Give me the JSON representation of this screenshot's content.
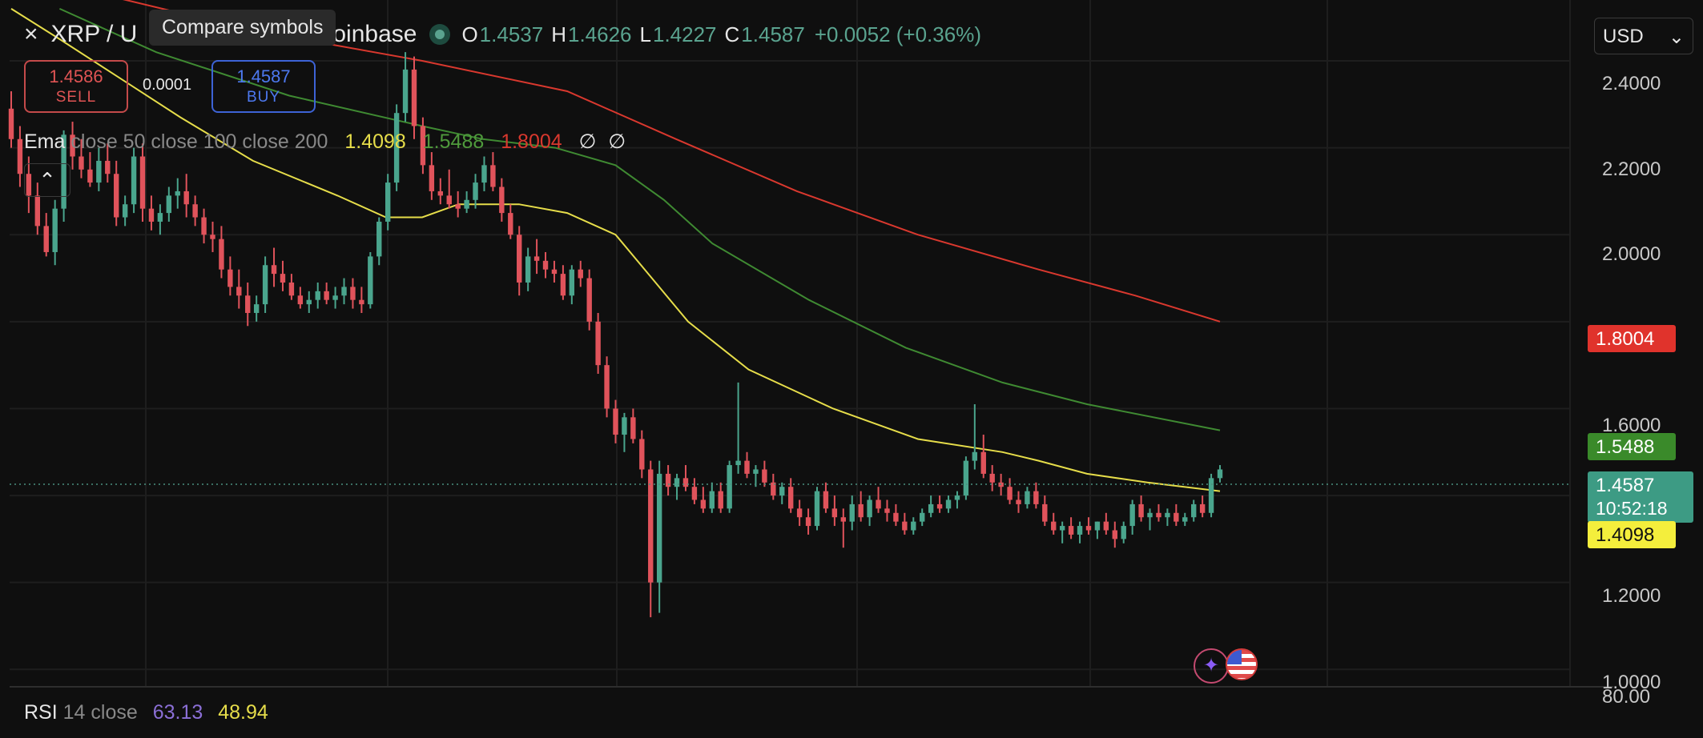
{
  "header": {
    "close_icon": "×",
    "symbol_title": "XRP / U",
    "exchange_suffix": "oinbase",
    "tooltip": "Compare symbols",
    "ohlc": [
      {
        "key": "O",
        "value": "1.4537"
      },
      {
        "key": "H",
        "value": "1.4626"
      },
      {
        "key": "L",
        "value": "1.4227"
      },
      {
        "key": "C",
        "value": "1.4587"
      }
    ],
    "change": "+0.0052 (+0.36%)",
    "currency": "USD",
    "currency_chevron": "⌄"
  },
  "trade": {
    "sell_price": "1.4586",
    "sell_label": "SELL",
    "spread": "0.0001",
    "buy_price": "1.4587",
    "buy_label": "BUY"
  },
  "ema_legend": {
    "name": "Ema",
    "params": "close 50 close 100 close 200",
    "value_50": "1.4098",
    "value_100": "1.5488",
    "value_200": "1.8004",
    "extra_1": "∅",
    "extra_2": "∅",
    "collapse_icon": "⌃"
  },
  "rsi_legend": {
    "name": "RSI",
    "params": "14 close",
    "value_rsi": "63.13",
    "value_ma": "48.94"
  },
  "price_axis": {
    "ticks": [
      "2.4000",
      "2.2000",
      "2.0000",
      "1.6000",
      "1.2000",
      "1.0000"
    ],
    "rsi_tick": "80.00"
  },
  "price_labels": {
    "ema200": "1.8004",
    "ema100": "1.5488",
    "last": "1.4587",
    "countdown": "10:52:18",
    "ema50": "1.4098"
  },
  "colors": {
    "up": "#4aa58d",
    "down": "#e0535b",
    "ema50": "#e6dd4a",
    "ema100": "#3f8a32",
    "ema200": "#d9382e",
    "grid": "#1e1e1e"
  },
  "icons": {
    "spark": "✦"
  },
  "chart_data": {
    "type": "candlestick",
    "symbol": "XRP / USD",
    "ylim": [
      0.96,
      2.54
    ],
    "candles": [
      [
        2.29,
        2.33,
        2.2,
        2.22
      ],
      [
        2.22,
        2.25,
        2.11,
        2.14
      ],
      [
        2.14,
        2.18,
        2.05,
        2.09
      ],
      [
        2.09,
        2.12,
        2.0,
        2.02
      ],
      [
        2.02,
        2.05,
        1.95,
        1.96
      ],
      [
        1.96,
        2.08,
        1.93,
        2.06
      ],
      [
        2.06,
        2.24,
        2.03,
        2.23
      ],
      [
        2.23,
        2.26,
        2.15,
        2.18
      ],
      [
        2.18,
        2.22,
        2.13,
        2.15
      ],
      [
        2.15,
        2.19,
        2.11,
        2.12
      ],
      [
        2.12,
        2.2,
        2.1,
        2.17
      ],
      [
        2.17,
        2.21,
        2.12,
        2.14
      ],
      [
        2.14,
        2.17,
        2.02,
        2.04
      ],
      [
        2.04,
        2.09,
        2.02,
        2.07
      ],
      [
        2.07,
        2.2,
        2.05,
        2.18
      ],
      [
        2.18,
        2.21,
        2.03,
        2.06
      ],
      [
        2.06,
        2.09,
        2.01,
        2.03
      ],
      [
        2.03,
        2.07,
        2.0,
        2.05
      ],
      [
        2.05,
        2.11,
        2.03,
        2.09
      ],
      [
        2.09,
        2.13,
        2.06,
        2.1
      ],
      [
        2.1,
        2.14,
        2.04,
        2.07
      ],
      [
        2.07,
        2.09,
        2.02,
        2.04
      ],
      [
        2.04,
        2.06,
        1.98,
        2.0
      ],
      [
        2.0,
        2.03,
        1.96,
        1.99
      ],
      [
        1.99,
        2.02,
        1.9,
        1.92
      ],
      [
        1.92,
        1.95,
        1.86,
        1.88
      ],
      [
        1.88,
        1.92,
        1.83,
        1.86
      ],
      [
        1.86,
        1.89,
        1.79,
        1.82
      ],
      [
        1.82,
        1.86,
        1.8,
        1.84
      ],
      [
        1.84,
        1.95,
        1.82,
        1.93
      ],
      [
        1.93,
        1.97,
        1.88,
        1.91
      ],
      [
        1.91,
        1.94,
        1.87,
        1.89
      ],
      [
        1.89,
        1.91,
        1.85,
        1.86
      ],
      [
        1.86,
        1.88,
        1.83,
        1.84
      ],
      [
        1.84,
        1.87,
        1.82,
        1.85
      ],
      [
        1.85,
        1.89,
        1.83,
        1.87
      ],
      [
        1.87,
        1.89,
        1.84,
        1.85
      ],
      [
        1.85,
        1.88,
        1.83,
        1.86
      ],
      [
        1.86,
        1.9,
        1.84,
        1.88
      ],
      [
        1.88,
        1.9,
        1.83,
        1.85
      ],
      [
        1.85,
        1.88,
        1.82,
        1.84
      ],
      [
        1.84,
        1.96,
        1.83,
        1.95
      ],
      [
        1.95,
        2.04,
        1.93,
        2.03
      ],
      [
        2.03,
        2.14,
        2.01,
        2.12
      ],
      [
        2.12,
        2.3,
        2.1,
        2.28
      ],
      [
        2.28,
        2.42,
        2.26,
        2.38
      ],
      [
        2.38,
        2.41,
        2.22,
        2.25
      ],
      [
        2.25,
        2.27,
        2.14,
        2.16
      ],
      [
        2.16,
        2.19,
        2.08,
        2.1
      ],
      [
        2.1,
        2.13,
        2.07,
        2.09
      ],
      [
        2.09,
        2.15,
        2.06,
        2.07
      ],
      [
        2.07,
        2.1,
        2.04,
        2.06
      ],
      [
        2.06,
        2.1,
        2.05,
        2.08
      ],
      [
        2.08,
        2.14,
        2.06,
        2.12
      ],
      [
        2.12,
        2.18,
        2.1,
        2.16
      ],
      [
        2.16,
        2.19,
        2.1,
        2.11
      ],
      [
        2.11,
        2.13,
        2.03,
        2.05
      ],
      [
        2.05,
        2.07,
        1.99,
        2.0
      ],
      [
        2.0,
        2.02,
        1.86,
        1.89
      ],
      [
        1.89,
        1.97,
        1.87,
        1.95
      ],
      [
        1.95,
        1.99,
        1.91,
        1.94
      ],
      [
        1.94,
        1.96,
        1.9,
        1.92
      ],
      [
        1.92,
        1.94,
        1.89,
        1.91
      ],
      [
        1.91,
        1.93,
        1.85,
        1.86
      ],
      [
        1.86,
        1.93,
        1.84,
        1.92
      ],
      [
        1.92,
        1.94,
        1.88,
        1.9
      ],
      [
        1.9,
        1.92,
        1.78,
        1.8
      ],
      [
        1.8,
        1.82,
        1.68,
        1.7
      ],
      [
        1.7,
        1.72,
        1.58,
        1.6
      ],
      [
        1.6,
        1.62,
        1.52,
        1.54
      ],
      [
        1.54,
        1.59,
        1.5,
        1.58
      ],
      [
        1.58,
        1.6,
        1.52,
        1.53
      ],
      [
        1.53,
        1.55,
        1.44,
        1.46
      ],
      [
        1.46,
        1.48,
        1.12,
        1.2
      ],
      [
        1.2,
        1.48,
        1.13,
        1.45
      ],
      [
        1.45,
        1.47,
        1.4,
        1.42
      ],
      [
        1.42,
        1.45,
        1.39,
        1.44
      ],
      [
        1.44,
        1.47,
        1.41,
        1.42
      ],
      [
        1.42,
        1.44,
        1.38,
        1.39
      ],
      [
        1.39,
        1.42,
        1.36,
        1.37
      ],
      [
        1.37,
        1.43,
        1.36,
        1.41
      ],
      [
        1.41,
        1.43,
        1.36,
        1.37
      ],
      [
        1.37,
        1.48,
        1.36,
        1.47
      ],
      [
        1.47,
        1.66,
        1.45,
        1.48
      ],
      [
        1.48,
        1.5,
        1.44,
        1.45
      ],
      [
        1.45,
        1.47,
        1.42,
        1.46
      ],
      [
        1.46,
        1.48,
        1.42,
        1.43
      ],
      [
        1.43,
        1.45,
        1.39,
        1.4
      ],
      [
        1.4,
        1.43,
        1.38,
        1.42
      ],
      [
        1.42,
        1.44,
        1.36,
        1.37
      ],
      [
        1.37,
        1.39,
        1.33,
        1.35
      ],
      [
        1.35,
        1.37,
        1.31,
        1.33
      ],
      [
        1.33,
        1.42,
        1.32,
        1.41
      ],
      [
        1.41,
        1.43,
        1.36,
        1.37
      ],
      [
        1.37,
        1.4,
        1.33,
        1.35
      ],
      [
        1.35,
        1.37,
        1.28,
        1.34
      ],
      [
        1.34,
        1.4,
        1.32,
        1.38
      ],
      [
        1.38,
        1.41,
        1.34,
        1.35
      ],
      [
        1.35,
        1.4,
        1.33,
        1.39
      ],
      [
        1.39,
        1.42,
        1.36,
        1.37
      ],
      [
        1.37,
        1.39,
        1.34,
        1.36
      ],
      [
        1.36,
        1.38,
        1.33,
        1.34
      ],
      [
        1.34,
        1.36,
        1.31,
        1.32
      ],
      [
        1.32,
        1.35,
        1.31,
        1.34
      ],
      [
        1.34,
        1.37,
        1.33,
        1.36
      ],
      [
        1.36,
        1.4,
        1.35,
        1.38
      ],
      [
        1.38,
        1.4,
        1.36,
        1.37
      ],
      [
        1.37,
        1.4,
        1.36,
        1.39
      ],
      [
        1.39,
        1.41,
        1.37,
        1.4
      ],
      [
        1.4,
        1.49,
        1.39,
        1.48
      ],
      [
        1.48,
        1.61,
        1.46,
        1.5
      ],
      [
        1.5,
        1.54,
        1.44,
        1.45
      ],
      [
        1.45,
        1.47,
        1.41,
        1.43
      ],
      [
        1.43,
        1.45,
        1.4,
        1.42
      ],
      [
        1.42,
        1.44,
        1.38,
        1.39
      ],
      [
        1.39,
        1.41,
        1.36,
        1.38
      ],
      [
        1.38,
        1.42,
        1.37,
        1.41
      ],
      [
        1.41,
        1.43,
        1.37,
        1.38
      ],
      [
        1.38,
        1.4,
        1.33,
        1.34
      ],
      [
        1.34,
        1.36,
        1.31,
        1.32
      ],
      [
        1.32,
        1.34,
        1.29,
        1.33
      ],
      [
        1.33,
        1.35,
        1.3,
        1.31
      ],
      [
        1.31,
        1.34,
        1.29,
        1.33
      ],
      [
        1.33,
        1.35,
        1.31,
        1.32
      ],
      [
        1.32,
        1.34,
        1.3,
        1.34
      ],
      [
        1.34,
        1.36,
        1.31,
        1.32
      ],
      [
        1.32,
        1.34,
        1.28,
        1.3
      ],
      [
        1.3,
        1.34,
        1.29,
        1.33
      ],
      [
        1.33,
        1.39,
        1.31,
        1.38
      ],
      [
        1.38,
        1.4,
        1.34,
        1.35
      ],
      [
        1.35,
        1.37,
        1.32,
        1.36
      ],
      [
        1.36,
        1.38,
        1.34,
        1.35
      ],
      [
        1.35,
        1.37,
        1.33,
        1.36
      ],
      [
        1.36,
        1.38,
        1.33,
        1.34
      ],
      [
        1.34,
        1.36,
        1.33,
        1.35
      ],
      [
        1.35,
        1.39,
        1.34,
        1.38
      ],
      [
        1.38,
        1.4,
        1.35,
        1.36
      ],
      [
        1.36,
        1.45,
        1.35,
        1.44
      ],
      [
        1.44,
        1.47,
        1.43,
        1.46
      ]
    ],
    "ema_series": [
      {
        "name": "close 50",
        "values": [
          [
            0,
            2.52
          ],
          [
            0.04,
            2.45
          ],
          [
            0.09,
            2.36
          ],
          [
            0.14,
            2.27
          ],
          [
            0.2,
            2.17
          ],
          [
            0.27,
            2.09
          ],
          [
            0.31,
            2.04
          ],
          [
            0.34,
            2.04
          ],
          [
            0.37,
            2.07
          ],
          [
            0.42,
            2.07
          ],
          [
            0.46,
            2.05
          ],
          [
            0.5,
            2.0
          ],
          [
            0.53,
            1.9
          ],
          [
            0.56,
            1.8
          ],
          [
            0.61,
            1.69
          ],
          [
            0.68,
            1.6
          ],
          [
            0.75,
            1.53
          ],
          [
            0.82,
            1.5
          ],
          [
            0.85,
            1.48
          ],
          [
            0.89,
            1.45
          ],
          [
            0.94,
            1.43
          ],
          [
            1.0,
            1.41
          ]
        ]
      },
      {
        "name": "close 100",
        "values": [
          [
            0.04,
            2.52
          ],
          [
            0.12,
            2.42
          ],
          [
            0.23,
            2.32
          ],
          [
            0.34,
            2.25
          ],
          [
            0.39,
            2.22
          ],
          [
            0.45,
            2.2
          ],
          [
            0.5,
            2.16
          ],
          [
            0.54,
            2.08
          ],
          [
            0.58,
            1.98
          ],
          [
            0.66,
            1.85
          ],
          [
            0.74,
            1.74
          ],
          [
            0.82,
            1.66
          ],
          [
            0.89,
            1.61
          ],
          [
            1.0,
            1.55
          ]
        ]
      },
      {
        "name": "close 200",
        "values": [
          [
            0.08,
            2.55
          ],
          [
            0.2,
            2.47
          ],
          [
            0.34,
            2.4
          ],
          [
            0.46,
            2.33
          ],
          [
            0.55,
            2.22
          ],
          [
            0.65,
            2.1
          ],
          [
            0.75,
            2.0
          ],
          [
            0.85,
            1.92
          ],
          [
            0.93,
            1.86
          ],
          [
            1.0,
            1.8
          ]
        ]
      }
    ]
  }
}
